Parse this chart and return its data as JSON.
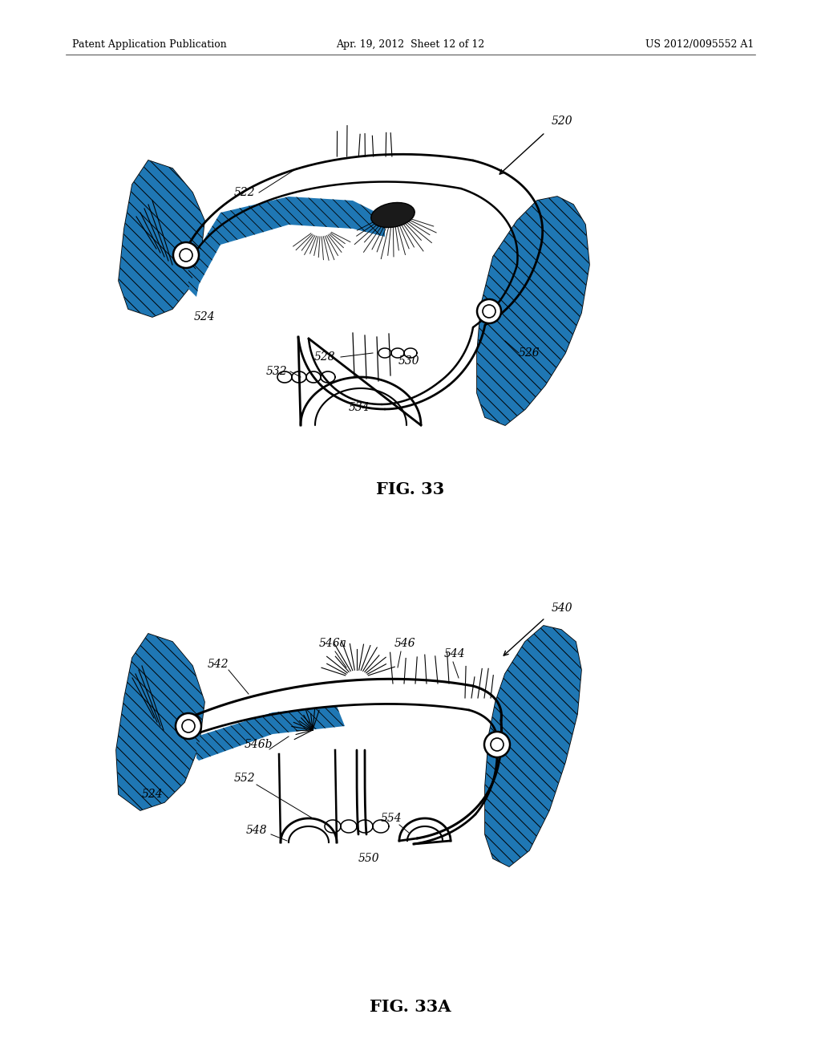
{
  "bg_color": "#ffffff",
  "header_left": "Patent Application Publication",
  "header_center": "Apr. 19, 2012  Sheet 12 of 12",
  "header_right": "US 2012/0095552 A1",
  "fig1_label": "FIG. 33",
  "fig2_label": "FIG. 33A"
}
